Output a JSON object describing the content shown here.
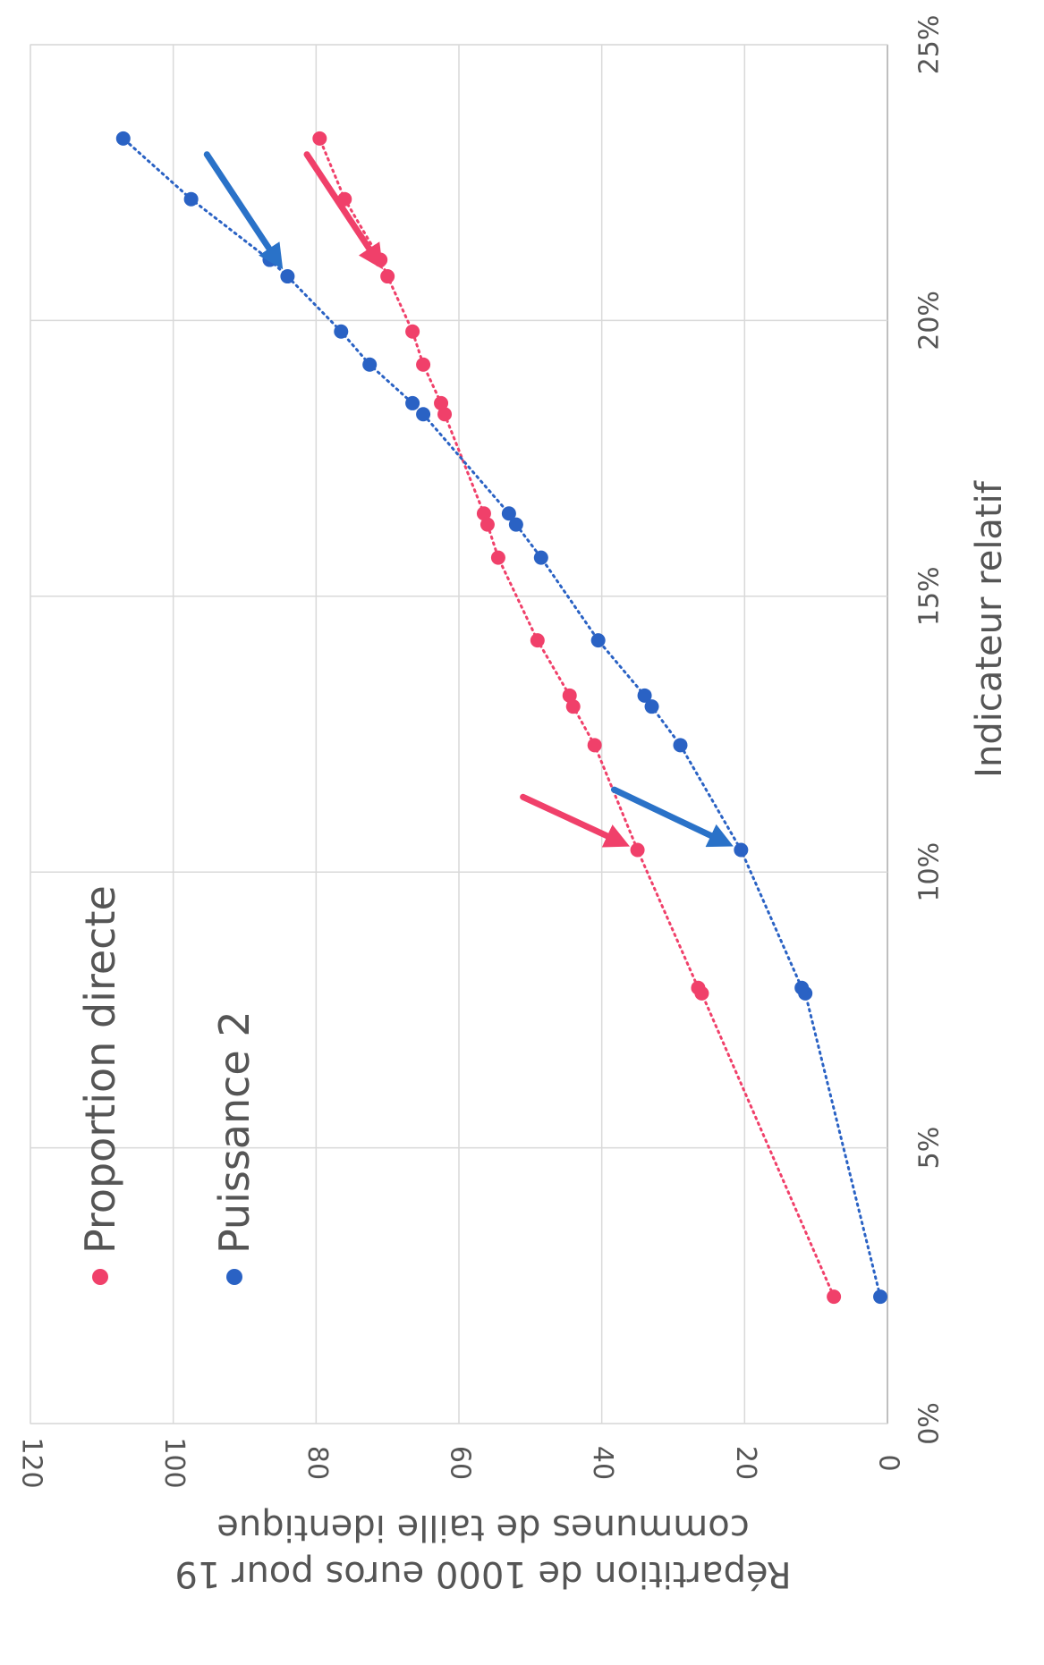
{
  "chart_data": {
    "type": "scatter",
    "xlabel": "Indicateur relatif",
    "ylabel_line1": "Répartition de 1000 euros pour 19",
    "ylabel_line2": "communes de taille identique",
    "x_ticks": [
      "0%",
      "5%",
      "10%",
      "15%",
      "20%",
      "25%"
    ],
    "y_ticks": [
      "0",
      "20",
      "40",
      "60",
      "80",
      "100",
      "120"
    ],
    "xlim": [
      0,
      25
    ],
    "ylim": [
      0,
      120
    ],
    "grid": true,
    "legend_position": "top-left",
    "rotation": "rotated 90 degrees clockwise",
    "series": [
      {
        "name": "Proportion directe",
        "color": "#f0406a",
        "x": [
          2.3,
          7.8,
          7.9,
          10.4,
          12.3,
          13.0,
          13.2,
          14.2,
          15.7,
          16.3,
          16.5,
          18.3,
          18.5,
          19.2,
          19.8,
          20.8,
          21.1,
          22.2,
          23.3
        ],
        "y": [
          7.5,
          26,
          26.5,
          35,
          41,
          44,
          44.5,
          49,
          54.5,
          56,
          56.5,
          62,
          62.5,
          65,
          66.5,
          70,
          71,
          76,
          79.5
        ]
      },
      {
        "name": "Puissance 2",
        "color": "#2a62c4",
        "x": [
          2.3,
          7.8,
          7.9,
          10.4,
          12.3,
          13.0,
          13.2,
          14.2,
          15.7,
          16.3,
          16.5,
          18.3,
          18.5,
          19.2,
          19.8,
          20.8,
          21.1,
          22.2,
          23.3
        ],
        "y": [
          1,
          11.5,
          12,
          20.5,
          29,
          33,
          34,
          40.5,
          48.5,
          52,
          53,
          65,
          66.5,
          72.5,
          76.5,
          84,
          86.5,
          97.5,
          107
        ]
      }
    ],
    "annotations": [
      {
        "type": "arrow",
        "color": "#f0406a",
        "target_series": 0,
        "target_index": 3
      },
      {
        "type": "arrow",
        "color": "#2a72c8",
        "target_series": 1,
        "target_index": 3
      },
      {
        "type": "arrow",
        "color": "#f0406a",
        "target_series": 0,
        "target_index": 15
      },
      {
        "type": "arrow",
        "color": "#2a72c8",
        "target_series": 1,
        "target_index": 15
      }
    ]
  }
}
